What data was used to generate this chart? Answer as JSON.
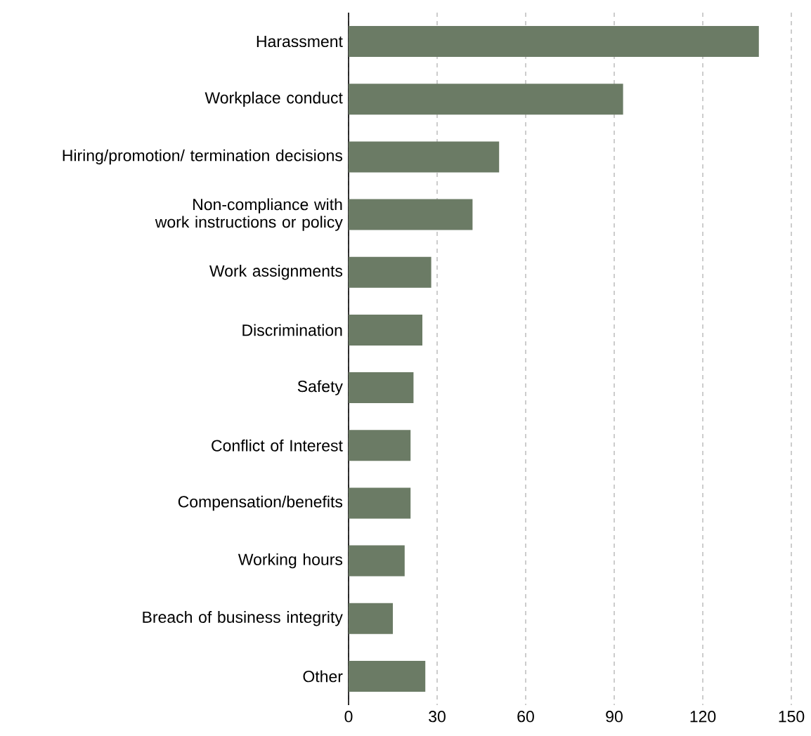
{
  "chart_data": {
    "type": "bar",
    "orientation": "horizontal",
    "categories": [
      "Harassment",
      "Workplace conduct",
      "Hiring/promotion/ termination decisions",
      "Non-compliance with work instructions or policy",
      "Work assignments",
      "Discrimination",
      "Safety",
      "Conflict of Interest",
      "Compensation/benefits",
      "Working hours",
      "Breach of business integrity",
      "Other"
    ],
    "values": [
      139,
      93,
      51,
      42,
      28,
      25,
      22,
      21,
      21,
      19,
      15,
      26
    ],
    "color": "#6b7b65",
    "xlim": [
      0,
      150
    ],
    "xticks": [
      0,
      30,
      60,
      90,
      120,
      150
    ],
    "grid": "x"
  }
}
